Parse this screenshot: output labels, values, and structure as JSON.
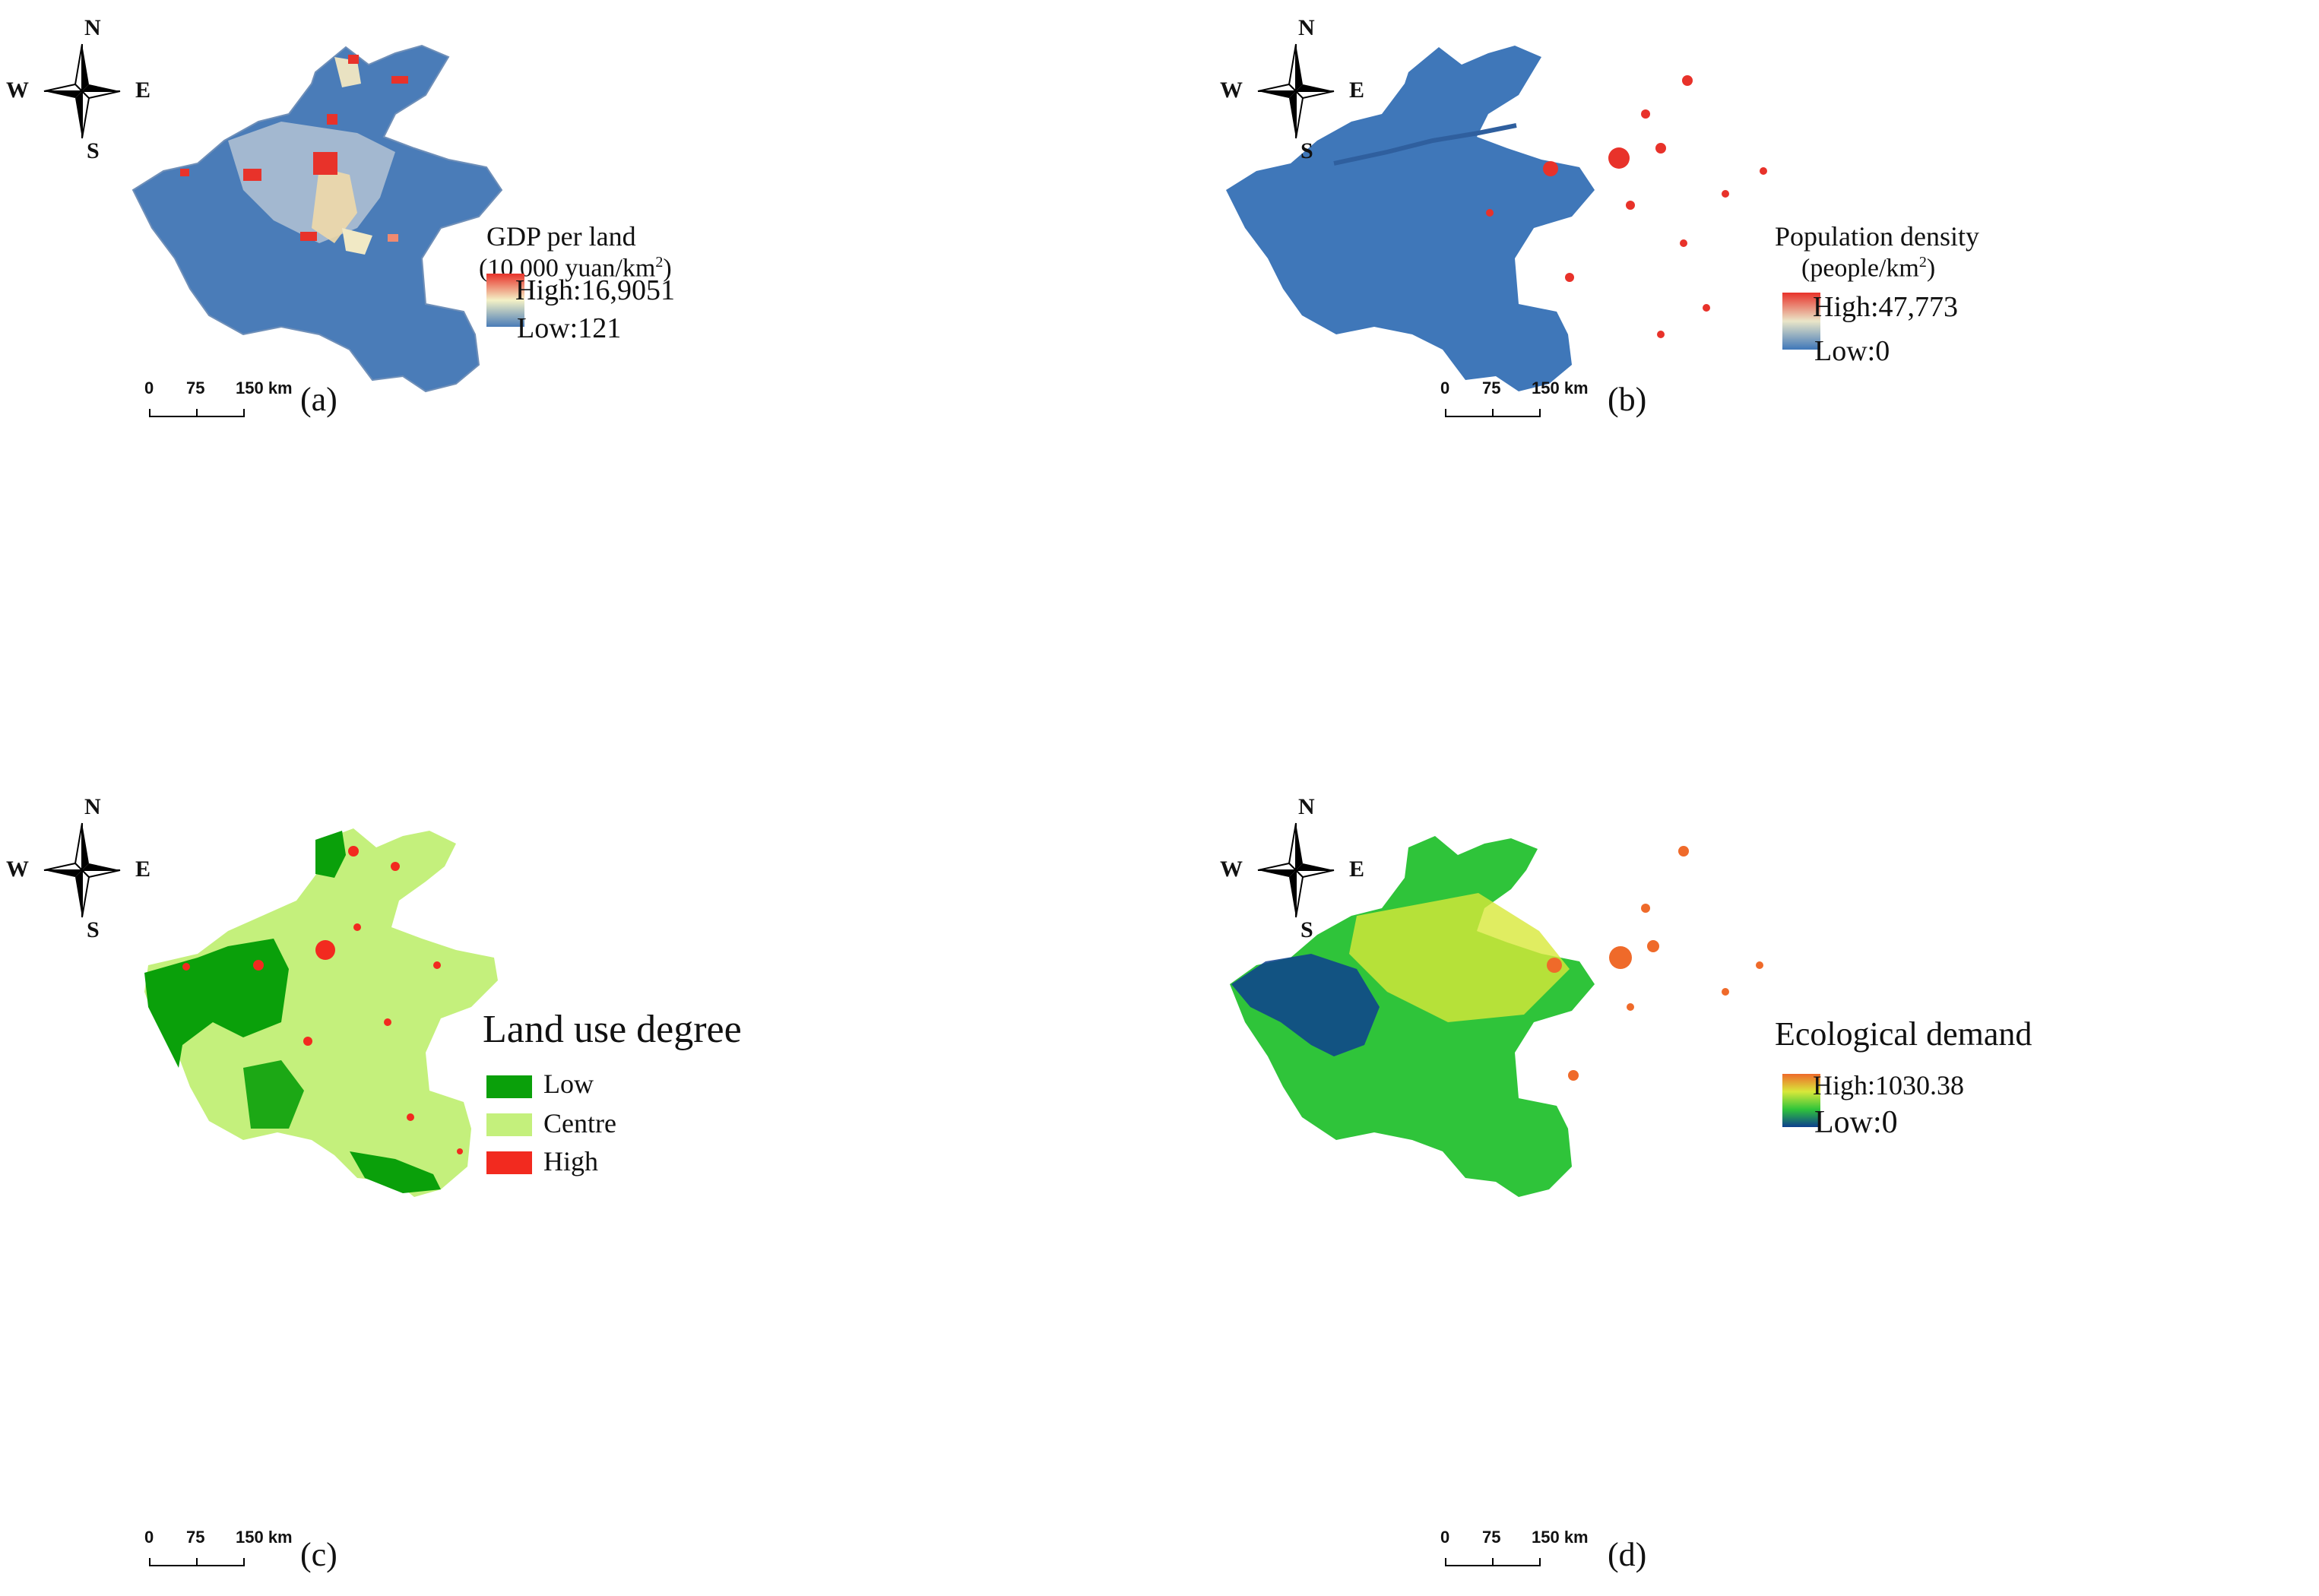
{
  "compass": {
    "n": "N",
    "s": "S",
    "w": "W",
    "e": "E"
  },
  "scale": {
    "t0": "0",
    "t1": "75",
    "t2": "150 km"
  },
  "panels": {
    "a": {
      "label": "(a)",
      "legend_title": "GDP per land",
      "legend_unit": "(10,000 yuan/km",
      "legend_unit_sup": "2",
      "legend_unit_close": ")",
      "high": "High:16,9051",
      "low": "Low:121",
      "colors": {
        "fill": "#4a7cb8",
        "mid": "#f4f1c6",
        "high": "#e8322a",
        "low": "#4a7cb8"
      }
    },
    "b": {
      "label": "(b)",
      "legend_title": "Population density",
      "legend_unit": "(people/km",
      "legend_unit_sup": "2",
      "legend_unit_close": ")",
      "high": "High:47,773",
      "low": "Low:0",
      "colors": {
        "fill": "#3f77b9",
        "mid": "#eae6c8",
        "high": "#e8322a",
        "low": "#3f77b9"
      }
    },
    "c": {
      "label": "(c)",
      "legend_title": "Land use degree",
      "classes": [
        {
          "label": "Low",
          "color": "#0aa00a"
        },
        {
          "label": "Centre",
          "color": "#c4f07c"
        },
        {
          "label": "High",
          "color": "#f22a1f"
        }
      ]
    },
    "d": {
      "label": "(d)",
      "legend_title": "Ecological demand",
      "high": "High:1030.38",
      "low": "Low:0",
      "colors": {
        "fill": "#2fc43a",
        "high": "#ef6a2a",
        "mid": "#d8e83a",
        "low": "#0d3f8f"
      }
    }
  }
}
